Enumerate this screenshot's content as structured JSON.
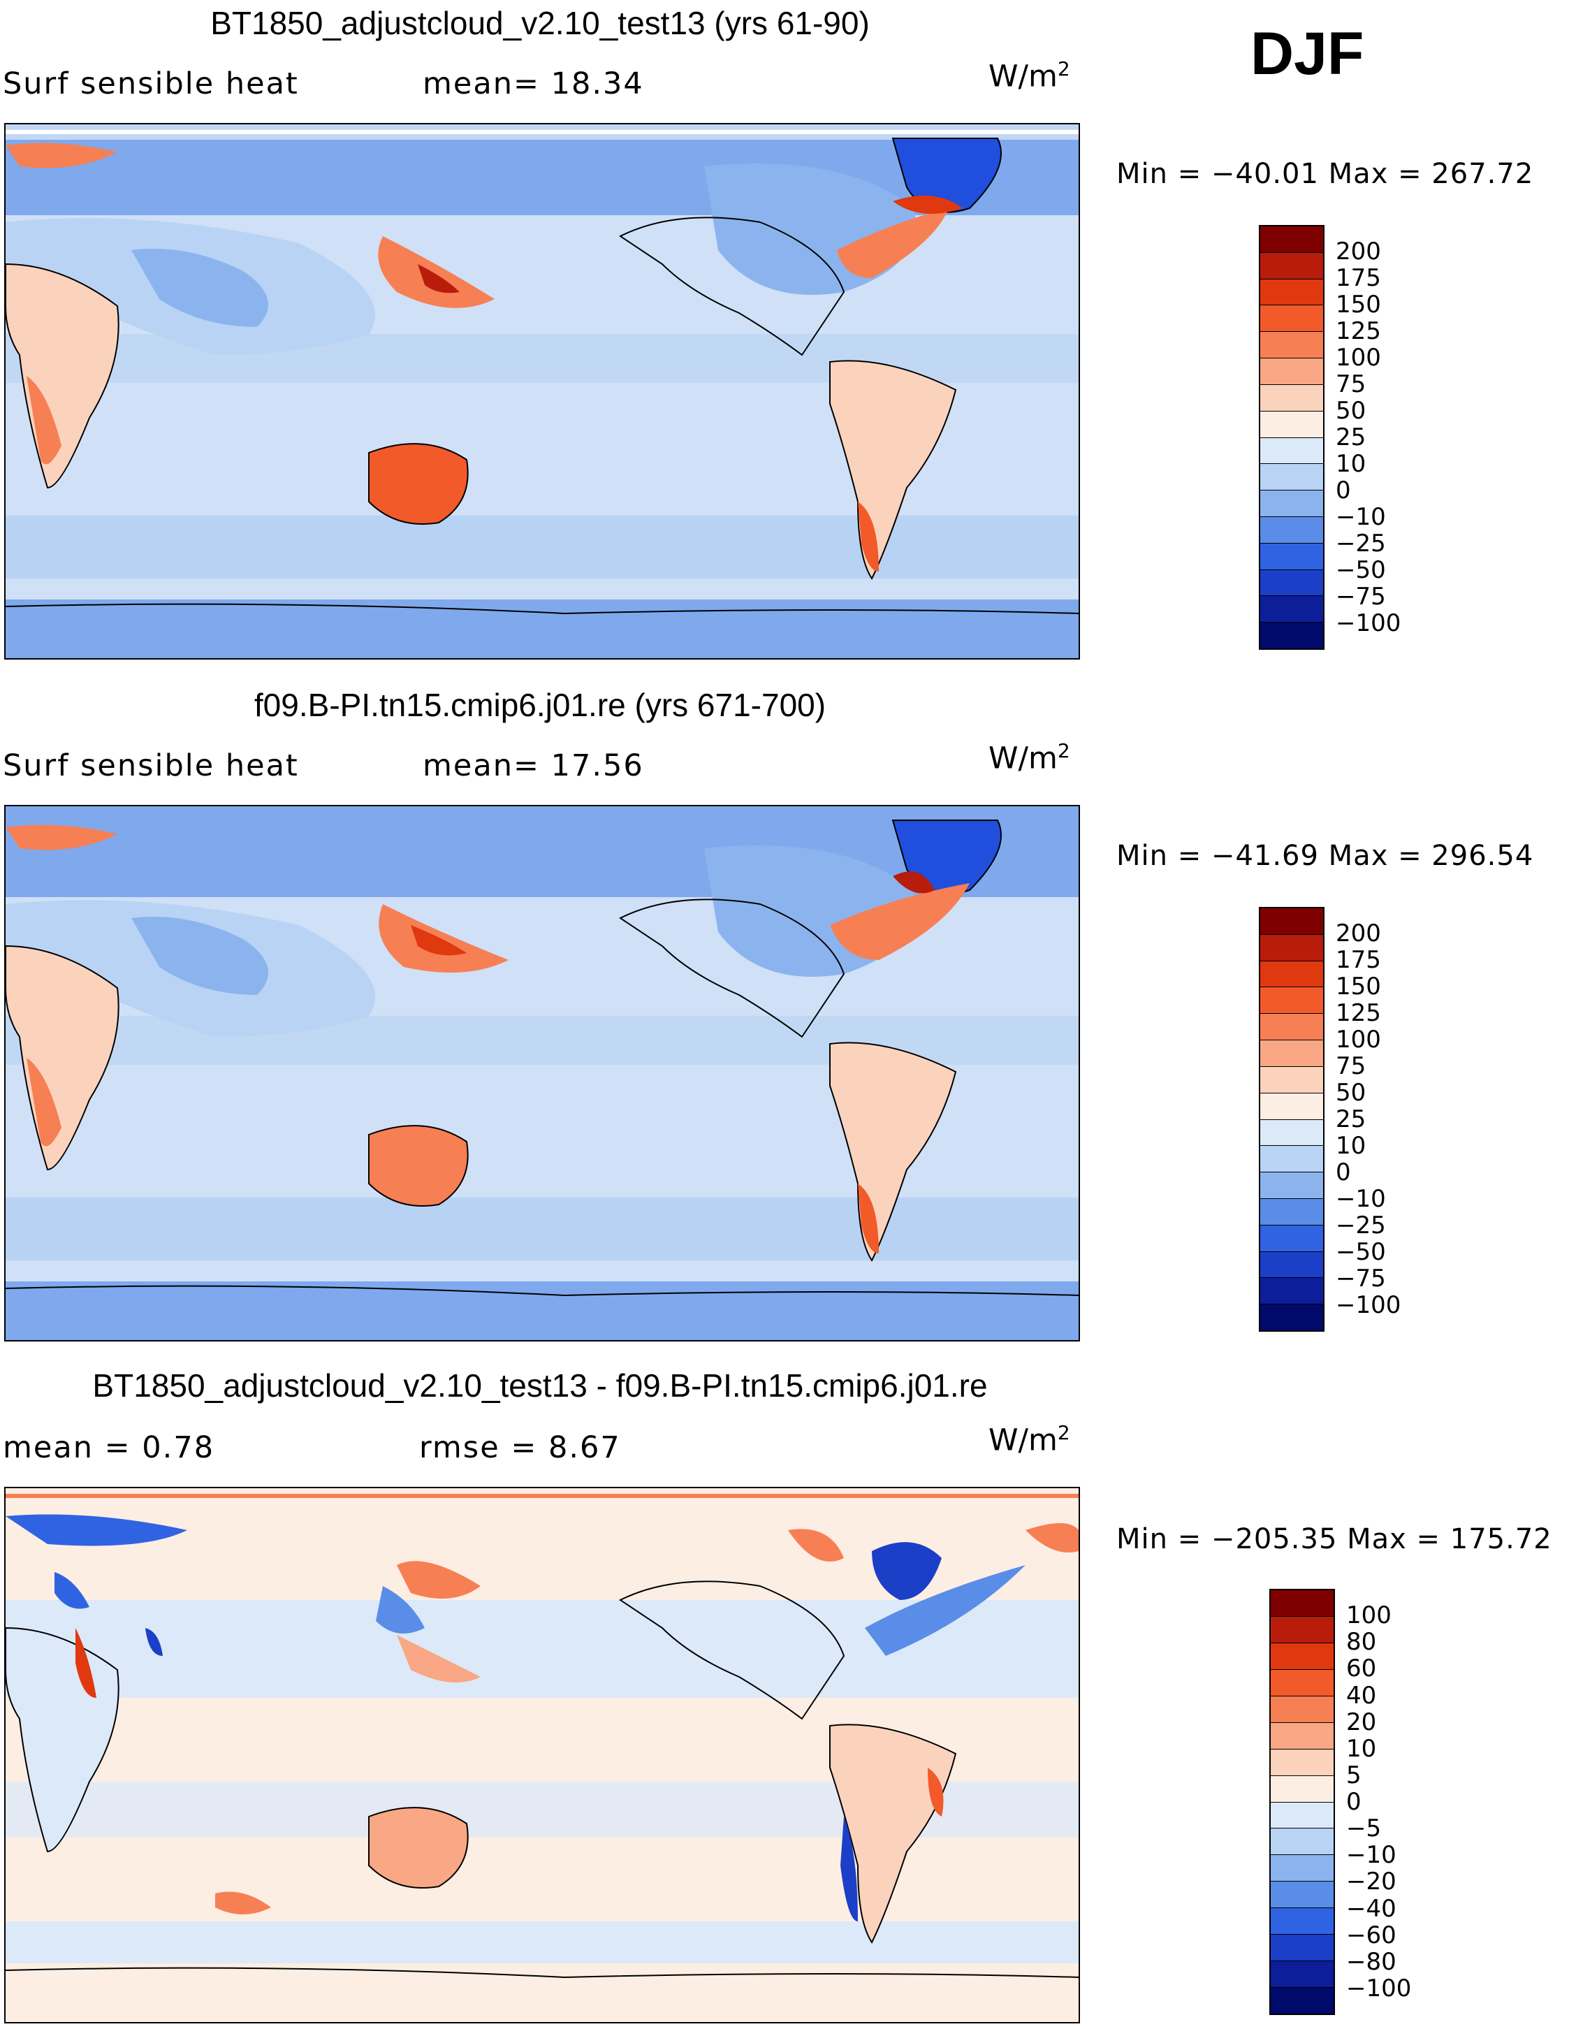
{
  "season": "DJF",
  "panels": [
    {
      "title": "BT1850_adjustcloud_v2.10_test13 (yrs 61-90)",
      "left_label": "Surf sensible heat",
      "mid_label": "mean=  18.34",
      "units": "W/m",
      "units_sup": "2",
      "minmax": "Min = −40.01 Max = 267.72",
      "colorbar_labels": [
        "200",
        "175",
        "150",
        "125",
        "100",
        "75",
        "50",
        "25",
        "10",
        "0",
        "−10",
        "−25",
        "−50",
        "−75",
        "−100"
      ],
      "colors": [
        "#7f0000",
        "#b81c0a",
        "#e0380f",
        "#f25a2a",
        "#f77f54",
        "#f9a784",
        "#fbd3bd",
        "#fdeee3",
        "#dce9f8",
        "#b8d3f4",
        "#8bb4ee",
        "#5a8de8",
        "#2f63e2",
        "#1c3fc8",
        "#0c1e99",
        "#000a6b"
      ],
      "chart_data": {
        "type": "heatmap",
        "title": "BT1850_adjustcloud_v2.10_test13 (yrs 61-90)",
        "variable": "Surf sensible heat",
        "units": "W/m2",
        "mean": 18.34,
        "min": -40.01,
        "max": 267.72,
        "contour_levels": [
          -100,
          -75,
          -50,
          -25,
          -10,
          0,
          10,
          25,
          50,
          75,
          100,
          125,
          150,
          175,
          200
        ]
      }
    },
    {
      "title": "f09.B-PI.tn15.cmip6.j01.re (yrs 671-700)",
      "left_label": "Surf sensible heat",
      "mid_label": "mean=  17.56",
      "units": "W/m",
      "units_sup": "2",
      "minmax": "Min = −41.69 Max = 296.54",
      "colorbar_labels": [
        "200",
        "175",
        "150",
        "125",
        "100",
        "75",
        "50",
        "25",
        "10",
        "0",
        "−10",
        "−25",
        "−50",
        "−75",
        "−100"
      ],
      "colors": [
        "#7f0000",
        "#b81c0a",
        "#e0380f",
        "#f25a2a",
        "#f77f54",
        "#f9a784",
        "#fbd3bd",
        "#fdeee3",
        "#dce9f8",
        "#b8d3f4",
        "#8bb4ee",
        "#5a8de8",
        "#2f63e2",
        "#1c3fc8",
        "#0c1e99",
        "#000a6b"
      ],
      "chart_data": {
        "type": "heatmap",
        "title": "f09.B-PI.tn15.cmip6.j01.re (yrs 671-700)",
        "variable": "Surf sensible heat",
        "units": "W/m2",
        "mean": 17.56,
        "min": -41.69,
        "max": 296.54,
        "contour_levels": [
          -100,
          -75,
          -50,
          -25,
          -10,
          0,
          10,
          25,
          50,
          75,
          100,
          125,
          150,
          175,
          200
        ]
      }
    },
    {
      "title": "BT1850_adjustcloud_v2.10_test13 - f09.B-PI.tn15.cmip6.j01.re",
      "left_label": "mean =   0.78",
      "mid_label": "rmse =   8.67",
      "units": "W/m",
      "units_sup": "2",
      "minmax": "Min = −205.35 Max = 175.72",
      "colorbar_labels": [
        "100",
        "80",
        "60",
        "40",
        "20",
        "10",
        "5",
        "0",
        "−5",
        "−10",
        "−20",
        "−40",
        "−60",
        "−80",
        "−100"
      ],
      "colors": [
        "#7f0000",
        "#b81c0a",
        "#e0380f",
        "#f25a2a",
        "#f77f54",
        "#f9a784",
        "#fbd3bd",
        "#fdeee3",
        "#dce9f8",
        "#b8d3f4",
        "#8bb4ee",
        "#5a8de8",
        "#2f63e2",
        "#1c3fc8",
        "#0c1e99",
        "#000a6b"
      ],
      "chart_data": {
        "type": "heatmap",
        "title": "BT1850_adjustcloud_v2.10_test13 - f09.B-PI.tn15.cmip6.j01.re",
        "variable": "difference",
        "units": "W/m2",
        "mean": 0.78,
        "rmse": 8.67,
        "min": -205.35,
        "max": 175.72,
        "contour_levels": [
          -100,
          -80,
          -60,
          -40,
          -20,
          -10,
          -5,
          0,
          5,
          10,
          20,
          40,
          60,
          80,
          100
        ]
      }
    }
  ]
}
